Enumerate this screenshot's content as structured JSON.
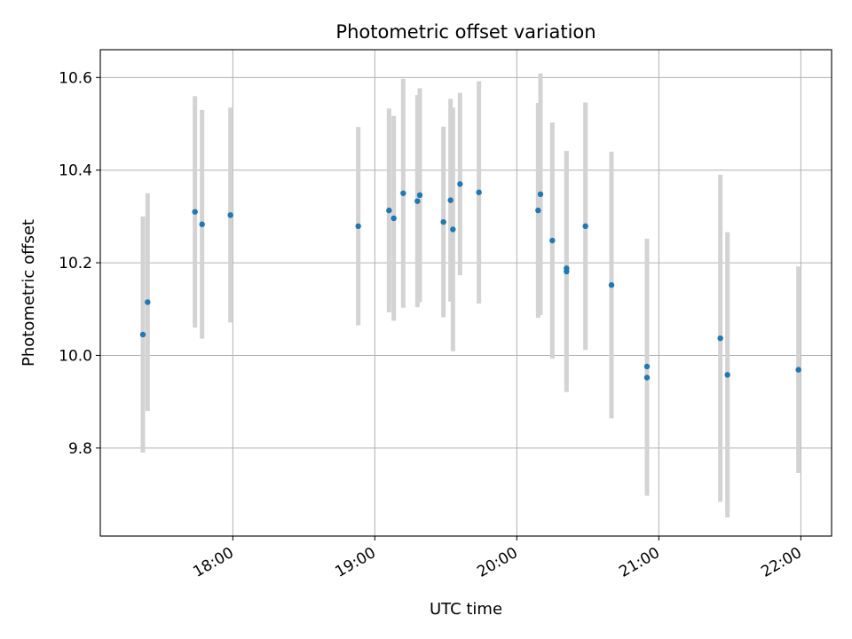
{
  "chart_data": {
    "type": "scatter",
    "title": "Photometric offset variation",
    "xlabel": "UTC time",
    "ylabel": "Photometric offset",
    "x_format": "HH:MM",
    "xlim": [
      "17:04",
      "22:13"
    ],
    "ylim": [
      9.61,
      10.66
    ],
    "xticks": [
      "18:00",
      "19:00",
      "20:00",
      "21:00",
      "22:00"
    ],
    "yticks": [
      9.8,
      10.0,
      10.2,
      10.4,
      10.6
    ],
    "grid": true,
    "errorbar_color": "#d3d3d3",
    "marker_color": "#1f77b4",
    "points": [
      {
        "x": "17:22",
        "y": 10.045,
        "err": 0.255
      },
      {
        "x": "17:24",
        "y": 10.115,
        "err": 0.235
      },
      {
        "x": "17:44",
        "y": 10.31,
        "err": 0.25
      },
      {
        "x": "17:47",
        "y": 10.283,
        "err": 0.247
      },
      {
        "x": "17:59",
        "y": 10.303,
        "err": 0.232
      },
      {
        "x": "18:53",
        "y": 10.279,
        "err": 0.214
      },
      {
        "x": "19:06",
        "y": 10.313,
        "err": 0.22
      },
      {
        "x": "19:08",
        "y": 10.296,
        "err": 0.221
      },
      {
        "x": "19:12",
        "y": 10.35,
        "err": 0.247
      },
      {
        "x": "19:18",
        "y": 10.333,
        "err": 0.229
      },
      {
        "x": "19:19",
        "y": 10.346,
        "err": 0.231
      },
      {
        "x": "19:29",
        "y": 10.288,
        "err": 0.206
      },
      {
        "x": "19:32",
        "y": 10.335,
        "err": 0.219
      },
      {
        "x": "19:33",
        "y": 10.272,
        "err": 0.263
      },
      {
        "x": "19:36",
        "y": 10.37,
        "err": 0.197
      },
      {
        "x": "19:44",
        "y": 10.352,
        "err": 0.24
      },
      {
        "x": "20:09",
        "y": 10.313,
        "err": 0.232
      },
      {
        "x": "20:10",
        "y": 10.348,
        "err": 0.261
      },
      {
        "x": "20:15",
        "y": 10.248,
        "err": 0.255
      },
      {
        "x": "20:21",
        "y": 10.188,
        "err": 0.253
      },
      {
        "x": "20:21",
        "y": 10.181,
        "err": 0.26
      },
      {
        "x": "20:29",
        "y": 10.279,
        "err": 0.267
      },
      {
        "x": "20:40",
        "y": 10.152,
        "err": 0.288
      },
      {
        "x": "20:55",
        "y": 9.976,
        "err": 0.276
      },
      {
        "x": "20:55",
        "y": 9.952,
        "err": 0.255
      },
      {
        "x": "21:26",
        "y": 10.037,
        "err": 0.353
      },
      {
        "x": "21:29",
        "y": 9.958,
        "err": 0.308
      },
      {
        "x": "21:59",
        "y": 9.969,
        "err": 0.223
      }
    ]
  }
}
